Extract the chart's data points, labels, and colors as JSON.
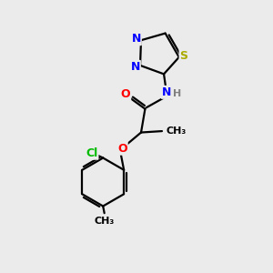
{
  "bg_color": "#ebebeb",
  "bond_color": "#000000",
  "atom_colors": {
    "N": "#0000ff",
    "S": "#aaaa00",
    "O": "#ff0000",
    "Cl": "#00bb00",
    "C": "#000000",
    "H": "#808080"
  },
  "figsize": [
    3.0,
    3.0
  ],
  "dpi": 100
}
